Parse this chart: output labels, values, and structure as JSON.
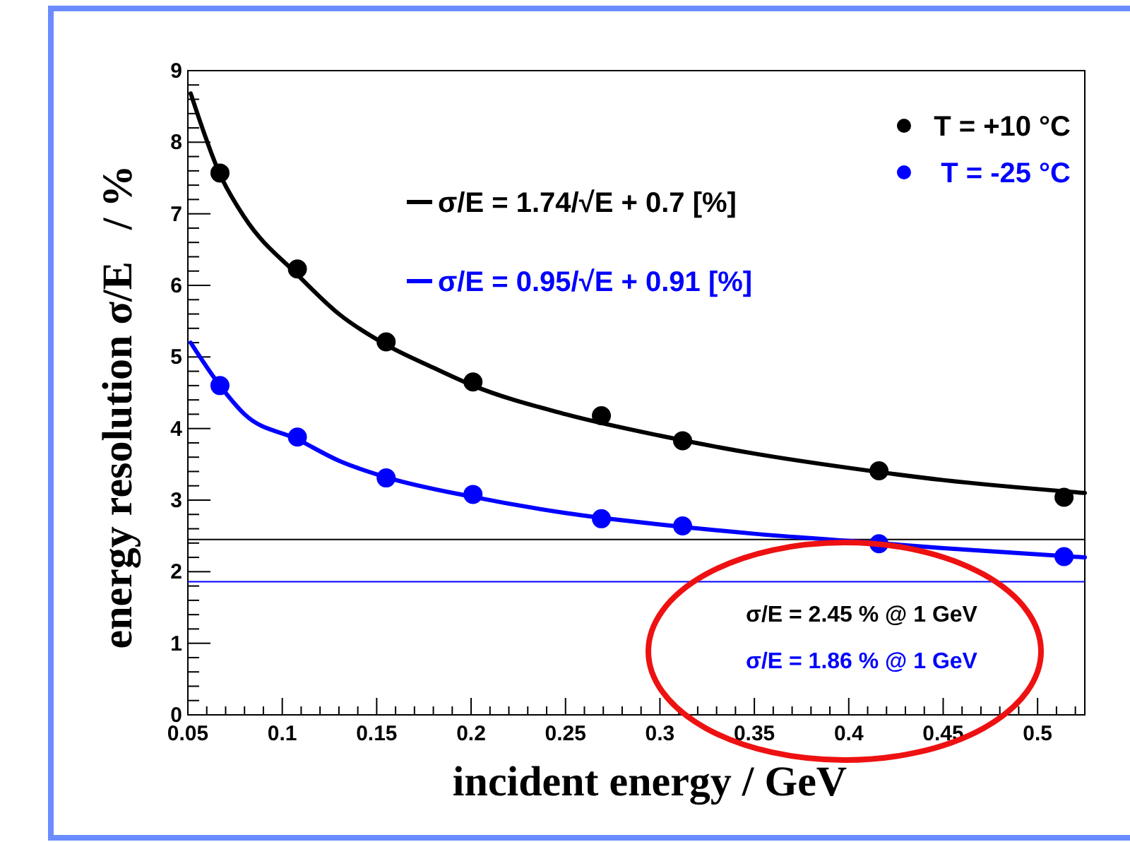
{
  "chart_data": {
    "type": "scatter",
    "xlabel": "incident energy / GeV",
    "ylabel": "energy resolution σ/E   / %",
    "xlim": [
      0.05,
      0.525
    ],
    "ylim": [
      0,
      9
    ],
    "xticks": [
      0.05,
      0.1,
      0.15,
      0.2,
      0.25,
      0.3,
      0.35,
      0.4,
      0.45,
      0.5
    ],
    "yticks": [
      0,
      1,
      2,
      3,
      4,
      5,
      6,
      7,
      8,
      9
    ],
    "grid": false,
    "legend": "top right",
    "marker": "circle",
    "series": [
      {
        "name": "T = +10 °C",
        "color": "#000000",
        "x": [
          0.067,
          0.108,
          0.155,
          0.201,
          0.269,
          0.312,
          0.416,
          0.514
        ],
        "values": [
          7.57,
          6.23,
          5.21,
          4.65,
          4.18,
          3.83,
          3.41,
          3.04
        ]
      },
      {
        "name": "T = -25 °C",
        "color": "#0000ff",
        "x": [
          0.067,
          0.108,
          0.155,
          0.201,
          0.269,
          0.312,
          0.416,
          0.514
        ],
        "values": [
          4.6,
          3.88,
          3.31,
          3.08,
          2.74,
          2.64,
          2.39,
          2.21
        ]
      },
      {
        "type": "line",
        "name": "σ/E = 1.74/√E + 0.7 [%]",
        "color": "#000000",
        "marker": "none",
        "x": [
          0.0515,
          0.067,
          0.08,
          0.108,
          0.13,
          0.155,
          0.18,
          0.201,
          0.25,
          0.3,
          0.35,
          0.4,
          0.45,
          0.525
        ],
        "values": [
          8.68,
          7.55,
          6.95,
          6.15,
          5.6,
          5.17,
          4.85,
          4.6,
          4.2,
          3.9,
          3.65,
          3.45,
          3.28,
          3.1
        ]
      },
      {
        "type": "line",
        "name": "σ/E = 0.95/√E + 0.91 [%]",
        "color": "#0000ff",
        "marker": "none",
        "x": [
          0.0515,
          0.067,
          0.08,
          0.108,
          0.13,
          0.155,
          0.2,
          0.25,
          0.3,
          0.35,
          0.4,
          0.45,
          0.525
        ],
        "values": [
          5.2,
          4.6,
          4.2,
          3.85,
          3.55,
          3.32,
          3.05,
          2.82,
          2.66,
          2.53,
          2.43,
          2.33,
          2.2
        ]
      }
    ],
    "ref_lines": [
      {
        "axis": "y",
        "value": 2.45,
        "label": "σ/E = 2.45 % @ 1 GeV",
        "color": "#000000"
      },
      {
        "axis": "y",
        "value": 1.86,
        "label": "σ/E = 1.86 % @ 1 GeV",
        "color": "#0000ff"
      }
    ]
  }
}
